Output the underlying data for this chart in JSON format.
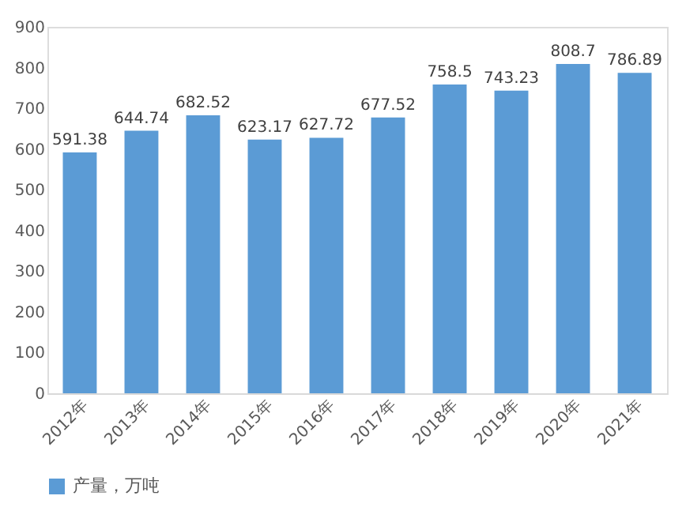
{
  "chart_data": {
    "type": "bar",
    "categories": [
      "2012年",
      "2013年",
      "2014年",
      "2015年",
      "2016年",
      "2017年",
      "2018年",
      "2019年",
      "2020年",
      "2021年"
    ],
    "series": [
      {
        "name": "产量，万吨",
        "color": "#5b9bd5",
        "values": [
          591.38,
          644.74,
          682.52,
          623.17,
          627.72,
          677.52,
          758.5,
          743.23,
          808.7,
          786.89
        ]
      }
    ],
    "ylim": [
      0,
      900
    ],
    "yticks": [
      0,
      100,
      200,
      300,
      400,
      500,
      600,
      700,
      800,
      900
    ],
    "data_labels": true,
    "grid": false,
    "legend": "bottom"
  }
}
